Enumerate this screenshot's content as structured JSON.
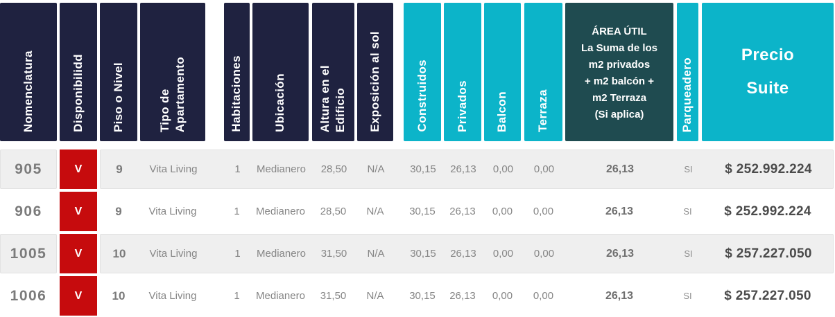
{
  "colors": {
    "header_navy": "#1f2240",
    "header_teal": "#0cb4c9",
    "header_slate": "#1f4b50",
    "availability_red": "#c60b0d",
    "row_alt_gray": "#efefef",
    "text_gray": "#858585",
    "price_text": "#4b4b4b"
  },
  "table": {
    "columns": [
      {
        "key": "nomenclatura",
        "label": "Nomenclatura"
      },
      {
        "key": "disponibilidad",
        "label": "Disponibilidd"
      },
      {
        "key": "piso",
        "label": "Piso o Nivel"
      },
      {
        "key": "tipo",
        "label": "Tipo de\nApartamento"
      },
      {
        "key": "habitaciones",
        "label": "Habitaciones"
      },
      {
        "key": "ubicacion",
        "label": "Ubicación"
      },
      {
        "key": "altura",
        "label": "Altura en el\nEdificio"
      },
      {
        "key": "exposicion",
        "label": "Exposición al sol"
      },
      {
        "key": "construidos",
        "label": "Construidos"
      },
      {
        "key": "privados",
        "label": "Privados"
      },
      {
        "key": "balcon",
        "label": "Balcon"
      },
      {
        "key": "terraza",
        "label": "Terraza"
      },
      {
        "key": "area_util",
        "label": "ÁREA ÚTIL\nLa Suma de los\nm2 privados\n+ m2 balcón +\nm2 Terraza\n(Si aplica)"
      },
      {
        "key": "parqueadero",
        "label": "Parqueadero"
      },
      {
        "key": "precio",
        "label": "Precio\nSuite"
      }
    ],
    "rows": [
      {
        "nomenclatura": "905",
        "disponibilidad": "V",
        "piso": "9",
        "tipo": "Vita Living",
        "habitaciones": "1",
        "ubicacion": "Medianero",
        "altura": "28,50",
        "exposicion": "N/A",
        "construidos": "30,15",
        "privados": "26,13",
        "balcon": "0,00",
        "terraza": "0,00",
        "area_util": "26,13",
        "parqueadero": "SI",
        "precio": "$ 252.992.224"
      },
      {
        "nomenclatura": "906",
        "disponibilidad": "V",
        "piso": "9",
        "tipo": "Vita Living",
        "habitaciones": "1",
        "ubicacion": "Medianero",
        "altura": "28,50",
        "exposicion": "N/A",
        "construidos": "30,15",
        "privados": "26,13",
        "balcon": "0,00",
        "terraza": "0,00",
        "area_util": "26,13",
        "parqueadero": "SI",
        "precio": "$ 252.992.224"
      },
      {
        "nomenclatura": "1005",
        "disponibilidad": "V",
        "piso": "10",
        "tipo": "Vita Living",
        "habitaciones": "1",
        "ubicacion": "Medianero",
        "altura": "31,50",
        "exposicion": "N/A",
        "construidos": "30,15",
        "privados": "26,13",
        "balcon": "0,00",
        "terraza": "0,00",
        "area_util": "26,13",
        "parqueadero": "SI",
        "precio": "$ 257.227.050"
      },
      {
        "nomenclatura": "1006",
        "disponibilidad": "V",
        "piso": "10",
        "tipo": "Vita Living",
        "habitaciones": "1",
        "ubicacion": "Medianero",
        "altura": "31,50",
        "exposicion": "N/A",
        "construidos": "30,15",
        "privados": "26,13",
        "balcon": "0,00",
        "terraza": "0,00",
        "area_util": "26,13",
        "parqueadero": "SI",
        "precio": "$ 257.227.050"
      }
    ]
  }
}
